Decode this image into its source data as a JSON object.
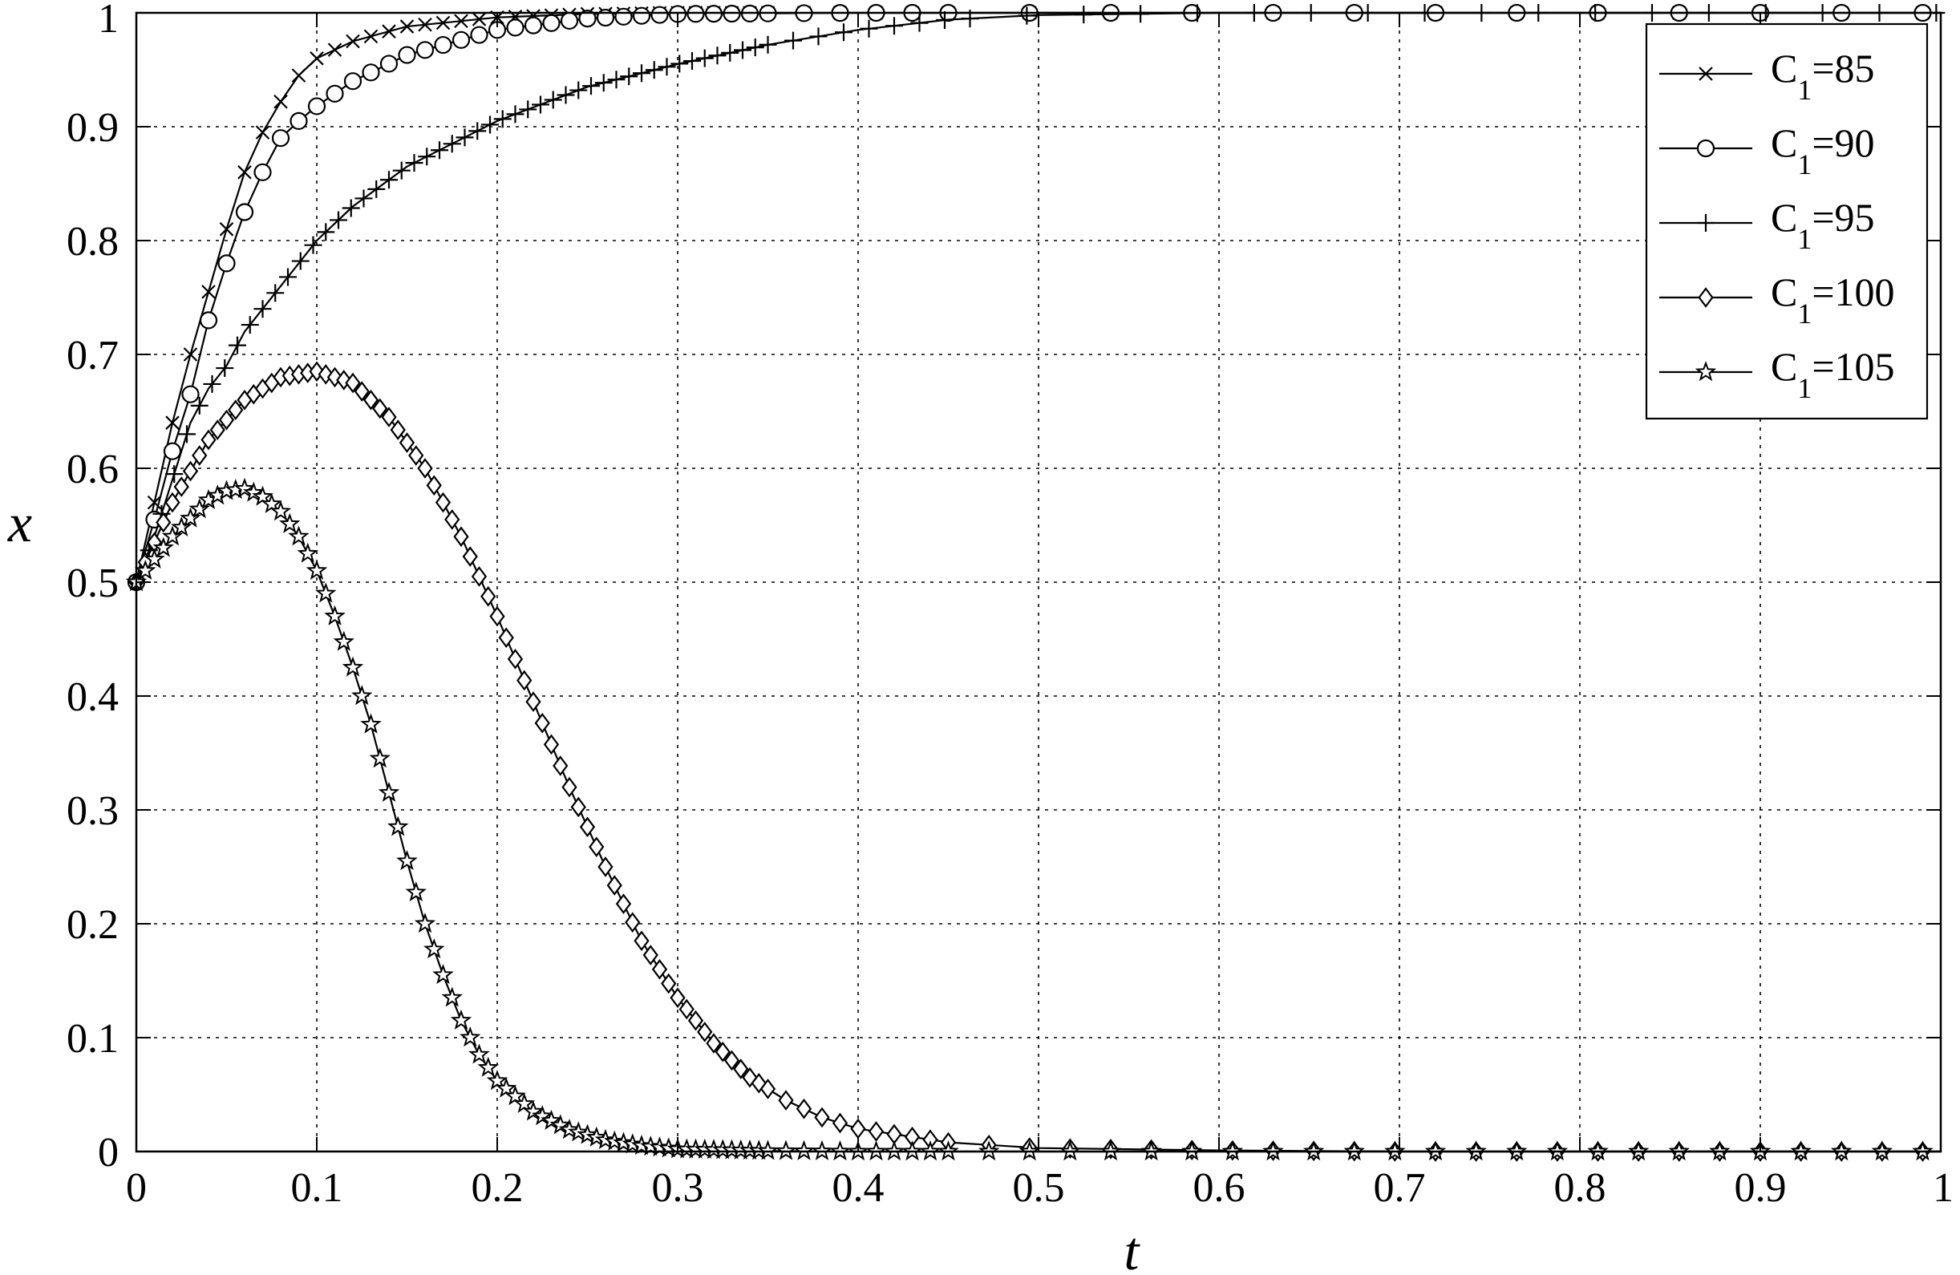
{
  "chart_data": {
    "type": "line",
    "title": "",
    "xlabel": "t",
    "ylabel": "x",
    "xlim": [
      0,
      1
    ],
    "ylim": [
      0,
      1
    ],
    "xticks": [
      "0",
      "0.1",
      "0.2",
      "0.3",
      "0.4",
      "0.5",
      "0.6",
      "0.7",
      "0.8",
      "0.9",
      "1"
    ],
    "yticks": [
      "0",
      "0.1",
      "0.2",
      "0.3",
      "0.4",
      "0.5",
      "0.6",
      "0.7",
      "0.8",
      "0.9",
      "1"
    ],
    "grid": true,
    "legend_position": "top-right",
    "series": [
      {
        "name": "C1=85",
        "label_main": "C",
        "label_sub": "1",
        "label_rest": "=85",
        "marker": "x",
        "x": [
          0,
          0.01,
          0.02,
          0.03,
          0.04,
          0.05,
          0.06,
          0.07,
          0.08,
          0.09,
          0.1,
          0.12,
          0.15,
          0.2,
          0.25,
          0.3,
          0.4,
          0.5,
          0.6,
          0.7,
          0.8,
          0.9,
          1
        ],
        "y": [
          0.5,
          0.57,
          0.64,
          0.7,
          0.755,
          0.81,
          0.86,
          0.895,
          0.922,
          0.945,
          0.96,
          0.975,
          0.988,
          0.996,
          0.999,
          1,
          1,
          1,
          1,
          1,
          1,
          1,
          1
        ]
      },
      {
        "name": "C1=90",
        "label_main": "C",
        "label_sub": "1",
        "label_rest": "=90",
        "marker": "o",
        "x": [
          0,
          0.01,
          0.02,
          0.03,
          0.04,
          0.05,
          0.06,
          0.07,
          0.08,
          0.09,
          0.1,
          0.12,
          0.15,
          0.2,
          0.25,
          0.3,
          0.4,
          0.5,
          0.6,
          0.7,
          0.8,
          0.9,
          1
        ],
        "y": [
          0.5,
          0.555,
          0.615,
          0.665,
          0.73,
          0.78,
          0.825,
          0.86,
          0.89,
          0.905,
          0.918,
          0.94,
          0.963,
          0.985,
          0.995,
          0.999,
          1,
          1,
          1,
          1,
          1,
          1,
          1
        ]
      },
      {
        "name": "C1=95",
        "label_main": "C",
        "label_sub": "1",
        "label_rest": "=95",
        "marker": "+",
        "x": [
          0,
          0.01,
          0.02,
          0.03,
          0.04,
          0.05,
          0.06,
          0.07,
          0.08,
          0.09,
          0.1,
          0.12,
          0.15,
          0.2,
          0.25,
          0.3,
          0.35,
          0.4,
          0.45,
          0.5,
          0.6,
          0.7,
          0.8,
          0.9,
          1
        ],
        "y": [
          0.5,
          0.54,
          0.59,
          0.64,
          0.67,
          0.69,
          0.72,
          0.74,
          0.76,
          0.78,
          0.8,
          0.83,
          0.865,
          0.905,
          0.935,
          0.955,
          0.972,
          0.985,
          0.994,
          0.998,
          1,
          1,
          1,
          1,
          1
        ]
      },
      {
        "name": "C1=100",
        "label_main": "C",
        "label_sub": "1",
        "label_rest": "=100",
        "marker": "diamond",
        "x": [
          0,
          0.02,
          0.04,
          0.06,
          0.08,
          0.1,
          0.12,
          0.14,
          0.16,
          0.18,
          0.2,
          0.22,
          0.24,
          0.26,
          0.28,
          0.3,
          0.32,
          0.34,
          0.36,
          0.38,
          0.4,
          0.45,
          0.5,
          0.6,
          0.7,
          0.8,
          0.9,
          1
        ],
        "y": [
          0.5,
          0.57,
          0.625,
          0.66,
          0.68,
          0.685,
          0.675,
          0.645,
          0.6,
          0.54,
          0.47,
          0.395,
          0.32,
          0.25,
          0.185,
          0.135,
          0.095,
          0.065,
          0.045,
          0.03,
          0.02,
          0.008,
          0.003,
          0.001,
          0,
          0,
          0,
          0
        ]
      },
      {
        "name": "C1=105",
        "label_main": "C",
        "label_sub": "1",
        "label_rest": "=105",
        "marker": "star",
        "x": [
          0,
          0.02,
          0.04,
          0.05,
          0.06,
          0.07,
          0.08,
          0.09,
          0.1,
          0.11,
          0.12,
          0.13,
          0.14,
          0.15,
          0.16,
          0.17,
          0.18,
          0.19,
          0.2,
          0.22,
          0.24,
          0.26,
          0.28,
          0.3,
          0.35,
          0.4,
          0.5,
          0.6,
          0.7,
          0.8,
          0.9,
          1
        ],
        "y": [
          0.5,
          0.54,
          0.572,
          0.58,
          0.582,
          0.575,
          0.562,
          0.54,
          0.51,
          0.47,
          0.425,
          0.375,
          0.315,
          0.255,
          0.2,
          0.155,
          0.115,
          0.085,
          0.062,
          0.035,
          0.019,
          0.01,
          0.005,
          0.002,
          0.0005,
          0,
          0,
          0,
          0,
          0,
          0,
          0
        ]
      }
    ]
  }
}
